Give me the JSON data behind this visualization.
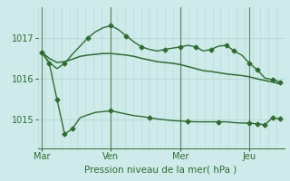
{
  "bg_color": "#ceeaea",
  "grid_color": "#aad0d0",
  "line_color": "#2d6e2d",
  "text_color": "#2d6e2d",
  "xlabel": "Pression niveau de la mer( hPa )",
  "yticks": [
    1015,
    1016,
    1017
  ],
  "ylim": [
    1014.3,
    1017.75
  ],
  "x_tick_labels": [
    "Mar",
    "Ven",
    "Mer",
    "Jeu"
  ],
  "x_tick_positions": [
    0,
    9,
    18,
    27
  ],
  "xlim": [
    -0.5,
    31.5
  ],
  "series1_x": [
    0,
    1,
    2,
    3,
    4,
    5,
    6,
    7,
    8,
    9,
    10,
    11,
    12,
    13,
    14,
    15,
    16,
    17,
    18,
    19,
    20,
    21,
    22,
    23,
    24,
    25,
    26,
    27,
    28,
    29,
    30,
    31
  ],
  "series1_y": [
    1016.65,
    1016.5,
    1016.4,
    1016.42,
    1016.48,
    1016.55,
    1016.58,
    1016.6,
    1016.62,
    1016.62,
    1016.6,
    1016.58,
    1016.55,
    1016.5,
    1016.46,
    1016.42,
    1016.4,
    1016.38,
    1016.35,
    1016.3,
    1016.25,
    1016.2,
    1016.18,
    1016.15,
    1016.12,
    1016.1,
    1016.08,
    1016.05,
    1016.0,
    1015.96,
    1015.92,
    1015.88
  ],
  "series2_x": [
    0,
    1,
    2,
    3,
    4,
    5,
    6,
    7,
    8,
    9,
    10,
    11,
    12,
    13,
    14,
    15,
    16,
    17,
    18,
    19,
    20,
    21,
    22,
    23,
    24,
    25,
    26,
    27,
    28,
    29,
    30,
    31
  ],
  "series2_y": [
    1016.65,
    1016.4,
    1016.25,
    1016.38,
    1016.6,
    1016.8,
    1017.0,
    1017.15,
    1017.25,
    1017.3,
    1017.2,
    1017.05,
    1016.9,
    1016.78,
    1016.72,
    1016.68,
    1016.72,
    1016.75,
    1016.78,
    1016.82,
    1016.78,
    1016.68,
    1016.72,
    1016.8,
    1016.82,
    1016.68,
    1016.58,
    1016.38,
    1016.22,
    1016.02,
    1015.98,
    1015.92
  ],
  "series3_x": [
    0,
    1,
    2,
    3,
    4,
    5,
    6,
    7,
    8,
    9,
    10,
    11,
    12,
    13,
    14,
    15,
    16,
    17,
    18,
    19,
    20,
    21,
    22,
    23,
    24,
    25,
    26,
    27,
    28,
    29,
    30,
    31
  ],
  "series3_y": [
    1016.65,
    1016.38,
    1015.5,
    1014.65,
    1014.78,
    1015.05,
    1015.12,
    1015.18,
    1015.2,
    1015.22,
    1015.18,
    1015.14,
    1015.1,
    1015.08,
    1015.05,
    1015.02,
    1015.0,
    1014.98,
    1014.97,
    1014.96,
    1014.95,
    1014.95,
    1014.95,
    1014.95,
    1014.95,
    1014.93,
    1014.92,
    1014.92,
    1014.9,
    1014.88,
    1015.05,
    1015.02
  ],
  "series2_markers_x": [
    0,
    3,
    6,
    9,
    11,
    13,
    16,
    18,
    20,
    22,
    24,
    25,
    27,
    28,
    30,
    31
  ],
  "series2_markers_y": [
    1016.65,
    1016.38,
    1017.0,
    1017.3,
    1017.05,
    1016.78,
    1016.72,
    1016.78,
    1016.78,
    1016.72,
    1016.82,
    1016.68,
    1016.38,
    1016.22,
    1015.98,
    1015.92
  ],
  "series3_markers_x": [
    0,
    1,
    2,
    3,
    4,
    9,
    14,
    19,
    23,
    27,
    28,
    29,
    30,
    31
  ],
  "series3_markers_y": [
    1016.65,
    1016.38,
    1015.5,
    1014.65,
    1014.78,
    1015.22,
    1015.05,
    1014.96,
    1014.95,
    1014.92,
    1014.9,
    1014.88,
    1015.05,
    1015.02
  ],
  "vline_color": "#5a8a5a",
  "vgrid_color": "#b8d8d8",
  "hgrid_color": "#b8d8d8"
}
